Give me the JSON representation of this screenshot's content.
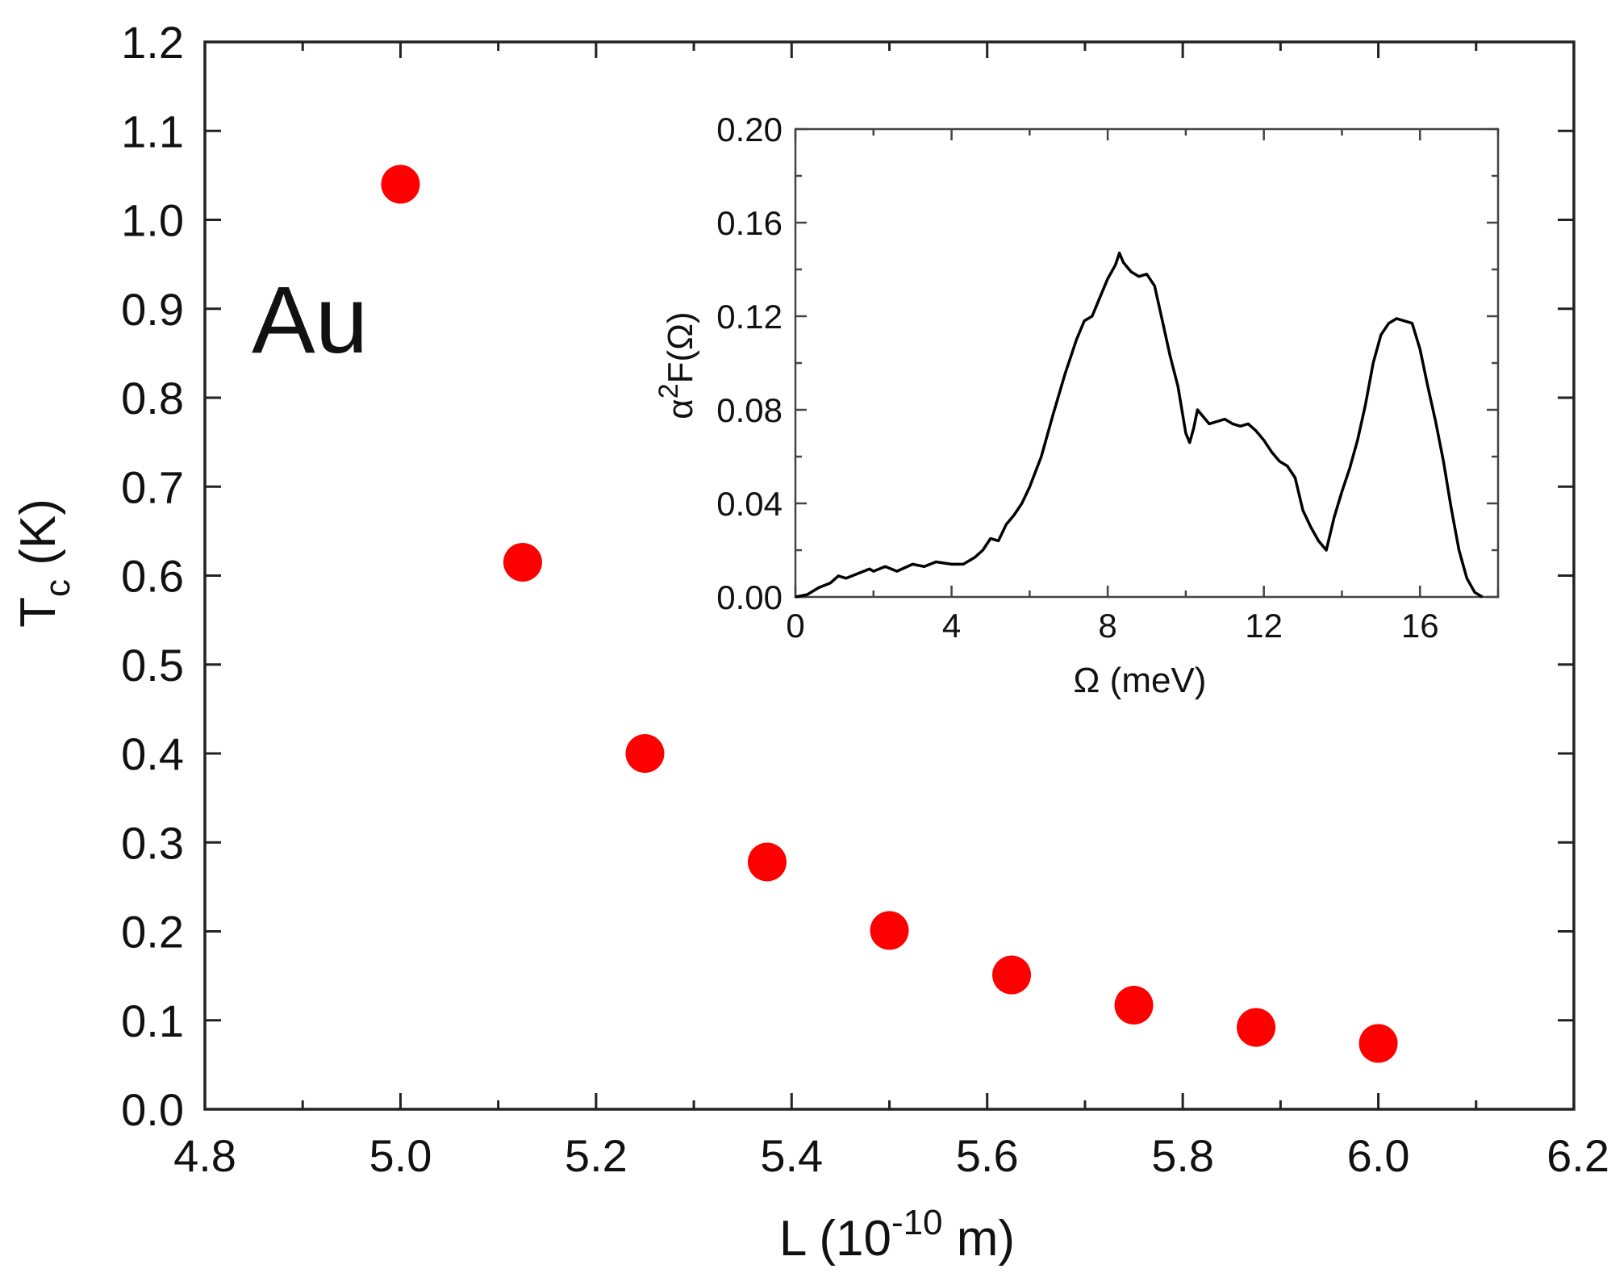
{
  "chart_data": [
    {
      "type": "scatter",
      "title": "",
      "annotation": "Au",
      "xlabel": {
        "main": "L  (10",
        "sup": "-10",
        "tail": " m)"
      },
      "ylabel": {
        "main": "T",
        "sub": "c",
        "tail": "  (K)"
      },
      "xlim": [
        4.8,
        6.2
      ],
      "ylim": [
        0.0,
        1.2
      ],
      "xticks": [
        "4.8",
        "5.0",
        "5.2",
        "5.4",
        "5.6",
        "5.8",
        "6.0",
        "6.2"
      ],
      "yticks": [
        "0.0",
        "0.1",
        "0.2",
        "0.3",
        "0.4",
        "0.5",
        "0.6",
        "0.7",
        "0.8",
        "0.9",
        "1.0",
        "1.1",
        "1.2"
      ],
      "marker_color": "#ff0000",
      "points": [
        {
          "x": 5.0,
          "y": 1.04
        },
        {
          "x": 5.125,
          "y": 0.615
        },
        {
          "x": 5.25,
          "y": 0.4
        },
        {
          "x": 5.375,
          "y": 0.278
        },
        {
          "x": 5.5,
          "y": 0.201
        },
        {
          "x": 5.625,
          "y": 0.151
        },
        {
          "x": 5.75,
          "y": 0.117
        },
        {
          "x": 5.875,
          "y": 0.092
        },
        {
          "x": 6.0,
          "y": 0.074
        }
      ]
    },
    {
      "type": "line",
      "title": "",
      "xlabel": "Ω  (meV)",
      "ylabel": {
        "pre": "α",
        "sup": "2",
        "tail": "F(Ω)"
      },
      "xlim": [
        0,
        18
      ],
      "ylim": [
        0.0,
        0.2
      ],
      "xticks": [
        "0",
        "4",
        "8",
        "12",
        "16"
      ],
      "yticks": [
        "0.00",
        "0.04",
        "0.08",
        "0.12",
        "0.16",
        "0.20"
      ],
      "line_color": "#000000",
      "series": [
        {
          "name": "α²F(Ω)",
          "x": [
            0.0,
            0.3,
            0.6,
            0.9,
            1.1,
            1.3,
            1.6,
            1.9,
            2.0,
            2.3,
            2.6,
            3.0,
            3.3,
            3.6,
            4.0,
            4.3,
            4.6,
            4.8,
            5.0,
            5.2,
            5.4,
            5.6,
            5.8,
            6.0,
            6.3,
            6.6,
            6.9,
            7.2,
            7.4,
            7.6,
            7.8,
            8.0,
            8.2,
            8.3,
            8.4,
            8.6,
            8.8,
            9.0,
            9.2,
            9.4,
            9.6,
            9.8,
            10.0,
            10.1,
            10.2,
            10.3,
            10.4,
            10.6,
            10.8,
            11.0,
            11.2,
            11.4,
            11.6,
            11.8,
            12.0,
            12.2,
            12.4,
            12.6,
            12.8,
            13.0,
            13.2,
            13.4,
            13.6,
            13.8,
            14.0,
            14.2,
            14.4,
            14.6,
            14.8,
            15.0,
            15.2,
            15.4,
            15.6,
            15.8,
            16.0,
            16.2,
            16.4,
            16.6,
            16.8,
            17.0,
            17.2,
            17.4,
            17.6
          ],
          "y": [
            0.0,
            0.001,
            0.004,
            0.006,
            0.009,
            0.008,
            0.01,
            0.012,
            0.011,
            0.013,
            0.011,
            0.014,
            0.013,
            0.015,
            0.014,
            0.014,
            0.017,
            0.02,
            0.025,
            0.024,
            0.031,
            0.035,
            0.04,
            0.047,
            0.06,
            0.078,
            0.095,
            0.11,
            0.118,
            0.12,
            0.128,
            0.136,
            0.142,
            0.147,
            0.143,
            0.139,
            0.137,
            0.138,
            0.133,
            0.118,
            0.103,
            0.09,
            0.07,
            0.066,
            0.072,
            0.08,
            0.078,
            0.074,
            0.075,
            0.076,
            0.074,
            0.073,
            0.074,
            0.071,
            0.067,
            0.062,
            0.058,
            0.056,
            0.051,
            0.037,
            0.03,
            0.024,
            0.02,
            0.034,
            0.045,
            0.055,
            0.067,
            0.082,
            0.1,
            0.112,
            0.117,
            0.119,
            0.118,
            0.117,
            0.106,
            0.09,
            0.075,
            0.058,
            0.038,
            0.02,
            0.008,
            0.002,
            0.0
          ]
        }
      ]
    }
  ]
}
